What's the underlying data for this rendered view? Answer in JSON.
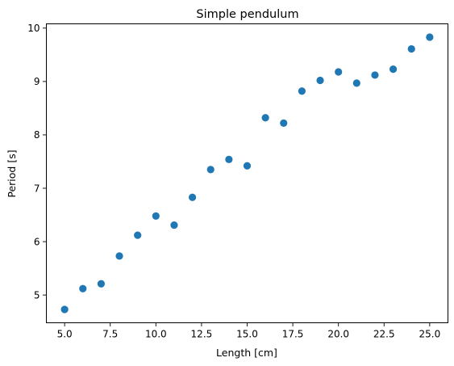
{
  "chart_data": {
    "type": "scatter",
    "title": "Simple pendulum",
    "xlabel": "Length [cm]",
    "ylabel": "Period [s]",
    "xlim": [
      4.0,
      26.0
    ],
    "ylim": [
      4.48,
      10.08
    ],
    "xticks": [
      5.0,
      7.5,
      10.0,
      12.5,
      15.0,
      17.5,
      20.0,
      22.5,
      25.0
    ],
    "xtick_labels": [
      "5.0",
      "7.5",
      "10.0",
      "12.5",
      "15.0",
      "17.5",
      "20.0",
      "22.5",
      "25.0"
    ],
    "yticks": [
      5,
      6,
      7,
      8,
      9,
      10
    ],
    "ytick_labels": [
      "5",
      "6",
      "7",
      "8",
      "9",
      "10"
    ],
    "grid": false,
    "legend": "none",
    "series": [
      {
        "color": "#1f77b4",
        "x": [
          5,
          6,
          7,
          8,
          9,
          10,
          11,
          12,
          13,
          14,
          15,
          16,
          17,
          18,
          19,
          20,
          21,
          22,
          23,
          24,
          25
        ],
        "y": [
          4.73,
          5.12,
          5.21,
          5.73,
          6.12,
          6.48,
          6.31,
          6.83,
          7.35,
          7.54,
          7.42,
          8.32,
          8.22,
          8.82,
          9.02,
          9.18,
          8.97,
          9.12,
          9.23,
          9.61,
          9.83
        ]
      }
    ]
  }
}
